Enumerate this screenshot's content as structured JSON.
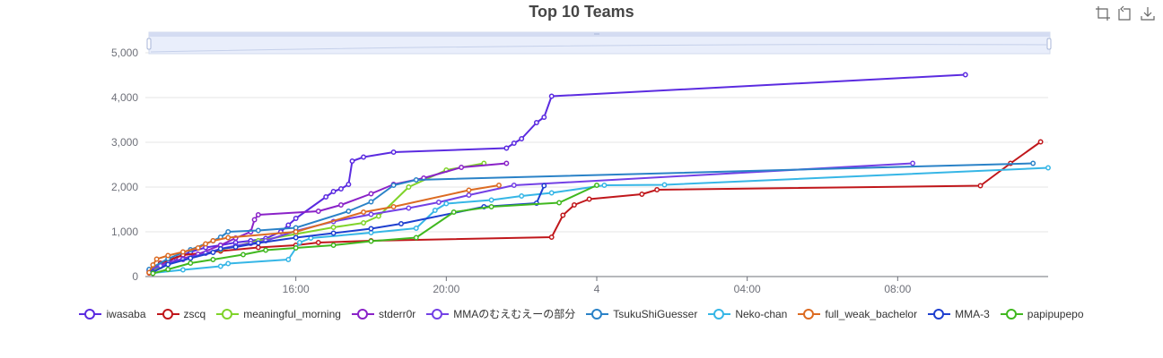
{
  "title": "Top 10 Teams",
  "toolbox": {
    "icons": [
      "zoom-select-icon",
      "zoom-reset-icon",
      "save-image-icon"
    ]
  },
  "chart_data": {
    "type": "line",
    "title": "Top 10 Teams",
    "xlabel": "",
    "ylabel": "",
    "x_unit": "hours since 12:00",
    "xlim": [
      0,
      12
    ],
    "ylim": [
      0,
      5000
    ],
    "y_ticks": [
      0,
      1000,
      2000,
      3000,
      4000,
      5000
    ],
    "y_tick_labels": [
      "0",
      "1,000",
      "2,000",
      "3,000",
      "4,000",
      "5,000"
    ],
    "x_ticks": [
      2,
      4,
      6,
      8,
      10
    ],
    "x_tick_labels": [
      "16:00",
      "20:00",
      "4",
      "04:00",
      "08:00"
    ],
    "grid": true,
    "legend_position": "bottom",
    "data_zoom": true,
    "series": [
      {
        "name": "iwasaba",
        "color": "#5b2be0",
        "points": [
          [
            0.05,
            120
          ],
          [
            0.1,
            180
          ],
          [
            0.2,
            250
          ],
          [
            0.3,
            320
          ],
          [
            0.4,
            420
          ],
          [
            0.5,
            480
          ],
          [
            0.6,
            550
          ],
          [
            0.8,
            650
          ],
          [
            1.0,
            700
          ],
          [
            1.2,
            760
          ],
          [
            1.4,
            800
          ],
          [
            1.6,
            850
          ],
          [
            1.8,
            1000
          ],
          [
            1.9,
            1150
          ],
          [
            2.0,
            1300
          ],
          [
            2.4,
            1780
          ],
          [
            2.5,
            1900
          ],
          [
            2.6,
            1960
          ],
          [
            2.7,
            2060
          ],
          [
            2.75,
            2580
          ],
          [
            2.9,
            2670
          ],
          [
            3.3,
            2780
          ],
          [
            4.8,
            2870
          ],
          [
            4.9,
            2980
          ],
          [
            5.0,
            3080
          ],
          [
            5.2,
            3440
          ],
          [
            5.3,
            3560
          ],
          [
            5.4,
            4030
          ],
          [
            10.9,
            4510
          ]
        ]
      },
      {
        "name": "zscq",
        "color": "#c0171b",
        "points": [
          [
            0.05,
            80
          ],
          [
            0.2,
            300
          ],
          [
            0.5,
            480
          ],
          [
            1.0,
            570
          ],
          [
            1.5,
            650
          ],
          [
            2.0,
            700
          ],
          [
            2.3,
            760
          ],
          [
            3.0,
            800
          ],
          [
            5.4,
            880
          ],
          [
            5.55,
            1370
          ],
          [
            5.7,
            1600
          ],
          [
            5.9,
            1730
          ],
          [
            6.6,
            1840
          ],
          [
            6.8,
            1940
          ],
          [
            11.1,
            2030
          ],
          [
            11.5,
            2530
          ],
          [
            11.9,
            3010
          ]
        ]
      },
      {
        "name": "meaningful_morning",
        "color": "#7fd32a",
        "points": [
          [
            0.05,
            100
          ],
          [
            0.2,
            220
          ],
          [
            0.5,
            400
          ],
          [
            1.0,
            600
          ],
          [
            1.5,
            800
          ],
          [
            2.0,
            950
          ],
          [
            2.5,
            1100
          ],
          [
            2.9,
            1200
          ],
          [
            3.1,
            1350
          ],
          [
            3.5,
            2000
          ],
          [
            4.0,
            2380
          ],
          [
            4.5,
            2530
          ]
        ]
      },
      {
        "name": "stderr0r",
        "color": "#8a22c8",
        "points": [
          [
            0.05,
            150
          ],
          [
            0.2,
            250
          ],
          [
            0.5,
            400
          ],
          [
            0.7,
            500
          ],
          [
            1.0,
            700
          ],
          [
            1.2,
            860
          ],
          [
            1.4,
            1000
          ],
          [
            1.45,
            1270
          ],
          [
            1.5,
            1380
          ],
          [
            2.3,
            1460
          ],
          [
            2.6,
            1600
          ],
          [
            3.0,
            1850
          ],
          [
            3.3,
            2060
          ],
          [
            3.7,
            2200
          ],
          [
            4.2,
            2440
          ],
          [
            4.8,
            2530
          ]
        ]
      },
      {
        "name": "MMAのむえむえーの部分",
        "color": "#7340e5",
        "points": [
          [
            0.05,
            130
          ],
          [
            0.2,
            240
          ],
          [
            0.5,
            380
          ],
          [
            0.8,
            520
          ],
          [
            1.0,
            620
          ],
          [
            1.2,
            690
          ],
          [
            1.4,
            740
          ],
          [
            1.6,
            800
          ],
          [
            2.0,
            1020
          ],
          [
            2.5,
            1230
          ],
          [
            3.0,
            1390
          ],
          [
            3.5,
            1530
          ],
          [
            3.9,
            1660
          ],
          [
            4.3,
            1820
          ],
          [
            4.9,
            2040
          ],
          [
            10.2,
            2530
          ]
        ]
      },
      {
        "name": "TsukuShiGuesser",
        "color": "#2a82c7",
        "points": [
          [
            0.05,
            160
          ],
          [
            0.3,
            400
          ],
          [
            0.6,
            600
          ],
          [
            0.9,
            800
          ],
          [
            1.0,
            880
          ],
          [
            1.1,
            1000
          ],
          [
            1.5,
            1030
          ],
          [
            2.0,
            1090
          ],
          [
            2.7,
            1460
          ],
          [
            3.0,
            1670
          ],
          [
            3.3,
            2040
          ],
          [
            3.6,
            2160
          ],
          [
            11.8,
            2530
          ]
        ]
      },
      {
        "name": "Neko-chan",
        "color": "#36b6e6",
        "points": [
          [
            0.1,
            80
          ],
          [
            0.5,
            150
          ],
          [
            1.0,
            230
          ],
          [
            1.1,
            290
          ],
          [
            1.9,
            380
          ],
          [
            2.05,
            760
          ],
          [
            2.2,
            860
          ],
          [
            3.0,
            980
          ],
          [
            3.6,
            1080
          ],
          [
            3.85,
            1480
          ],
          [
            4.0,
            1630
          ],
          [
            4.6,
            1710
          ],
          [
            5.0,
            1800
          ],
          [
            5.4,
            1870
          ],
          [
            6.1,
            2040
          ],
          [
            6.9,
            2050
          ],
          [
            12.0,
            2430
          ]
        ]
      },
      {
        "name": "full_weak_bachelor",
        "color": "#dc6b22",
        "points": [
          [
            0.05,
            90
          ],
          [
            0.1,
            260
          ],
          [
            0.15,
            390
          ],
          [
            0.3,
            470
          ],
          [
            0.5,
            550
          ],
          [
            0.7,
            640
          ],
          [
            0.8,
            730
          ],
          [
            0.9,
            800
          ],
          [
            1.1,
            870
          ],
          [
            2.0,
            1000
          ],
          [
            2.9,
            1440
          ],
          [
            3.3,
            1560
          ],
          [
            4.3,
            1930
          ],
          [
            4.7,
            2040
          ]
        ]
      },
      {
        "name": "MMA-3",
        "color": "#1e3fcf",
        "points": [
          [
            0.1,
            100
          ],
          [
            0.3,
            270
          ],
          [
            0.6,
            410
          ],
          [
            0.9,
            540
          ],
          [
            1.0,
            620
          ],
          [
            1.2,
            660
          ],
          [
            1.5,
            750
          ],
          [
            2.0,
            870
          ],
          [
            2.5,
            970
          ],
          [
            3.0,
            1070
          ],
          [
            3.4,
            1180
          ],
          [
            4.5,
            1560
          ],
          [
            5.2,
            1640
          ],
          [
            5.3,
            2030
          ]
        ]
      },
      {
        "name": "papipupepo",
        "color": "#40b81f",
        "points": [
          [
            0.1,
            70
          ],
          [
            0.3,
            160
          ],
          [
            0.6,
            300
          ],
          [
            0.9,
            380
          ],
          [
            1.3,
            490
          ],
          [
            1.6,
            590
          ],
          [
            2.0,
            640
          ],
          [
            2.5,
            700
          ],
          [
            3.0,
            790
          ],
          [
            3.6,
            870
          ],
          [
            4.1,
            1440
          ],
          [
            4.6,
            1560
          ],
          [
            5.5,
            1650
          ],
          [
            6.0,
            2040
          ]
        ]
      }
    ]
  }
}
